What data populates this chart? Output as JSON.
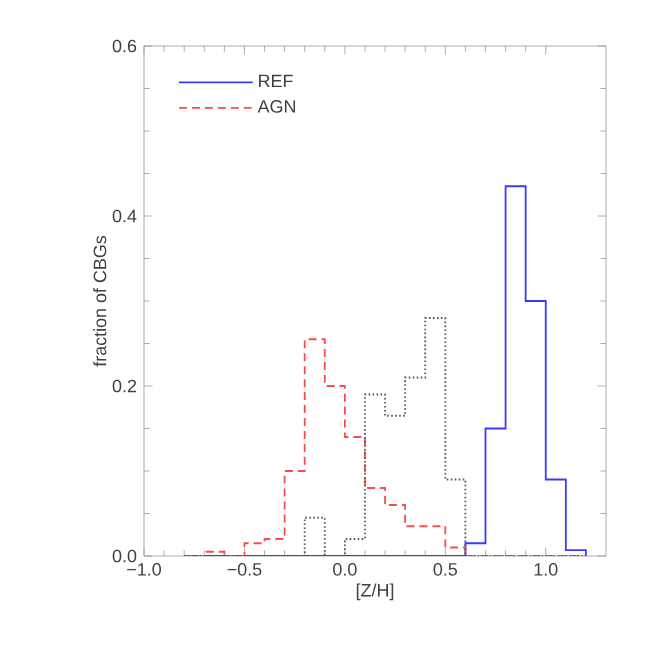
{
  "chart_data": {
    "type": "histogram",
    "xlabel": "[Z/H]",
    "ylabel": "fraction of CBGs",
    "xlim": [
      -1.0,
      1.3
    ],
    "ylim": [
      0,
      0.6
    ],
    "xticks": [
      {
        "value": -1.0,
        "label": "−1.0"
      },
      {
        "value": -0.5,
        "label": "−0.5"
      },
      {
        "value": 0,
        "label": "0.0"
      },
      {
        "value": 0.5,
        "label": "0.5"
      },
      {
        "value": 1.0,
        "label": "1.0"
      }
    ],
    "yticks": [
      {
        "value": 0,
        "label": "0.0"
      },
      {
        "value": 0.2,
        "label": "0.2"
      },
      {
        "value": 0.4,
        "label": "0.4"
      },
      {
        "value": 0.6,
        "label": "0.6"
      }
    ],
    "legend": "top left",
    "grid": false,
    "bins": [
      -0.8,
      -0.7,
      -0.6,
      -0.5,
      -0.4,
      -0.3,
      -0.2,
      -0.1,
      0.0,
      0.1,
      0.2,
      0.3,
      0.4,
      0.5,
      0.6,
      0.7,
      0.8,
      0.9,
      1.0,
      1.1,
      1.2
    ],
    "series": [
      {
        "name": "REF",
        "color": "#3a3aff",
        "line_style": "solid",
        "values": [
          0,
          0,
          0,
          0,
          0,
          0,
          0,
          0,
          0,
          0,
          0,
          0,
          0,
          0,
          0.015,
          0.15,
          0.435,
          0.3,
          0.09,
          0.007
        ]
      },
      {
        "name": "AGN",
        "color": "#ff4a4a",
        "line_style": "dashed",
        "values": [
          0,
          0.005,
          0,
          0.015,
          0.02,
          0.1,
          0.255,
          0.2,
          0.14,
          0.08,
          0.06,
          0.035,
          0.035,
          0.01,
          0,
          0,
          0,
          0,
          0,
          0
        ]
      },
      {
        "color": "#555555",
        "line_style": "dotted",
        "values": [
          0,
          0,
          0,
          0,
          0,
          0,
          0.045,
          0,
          0.02,
          0.19,
          0.165,
          0.21,
          0.28,
          0.09,
          0,
          0,
          0,
          0,
          0,
          0
        ]
      }
    ]
  }
}
